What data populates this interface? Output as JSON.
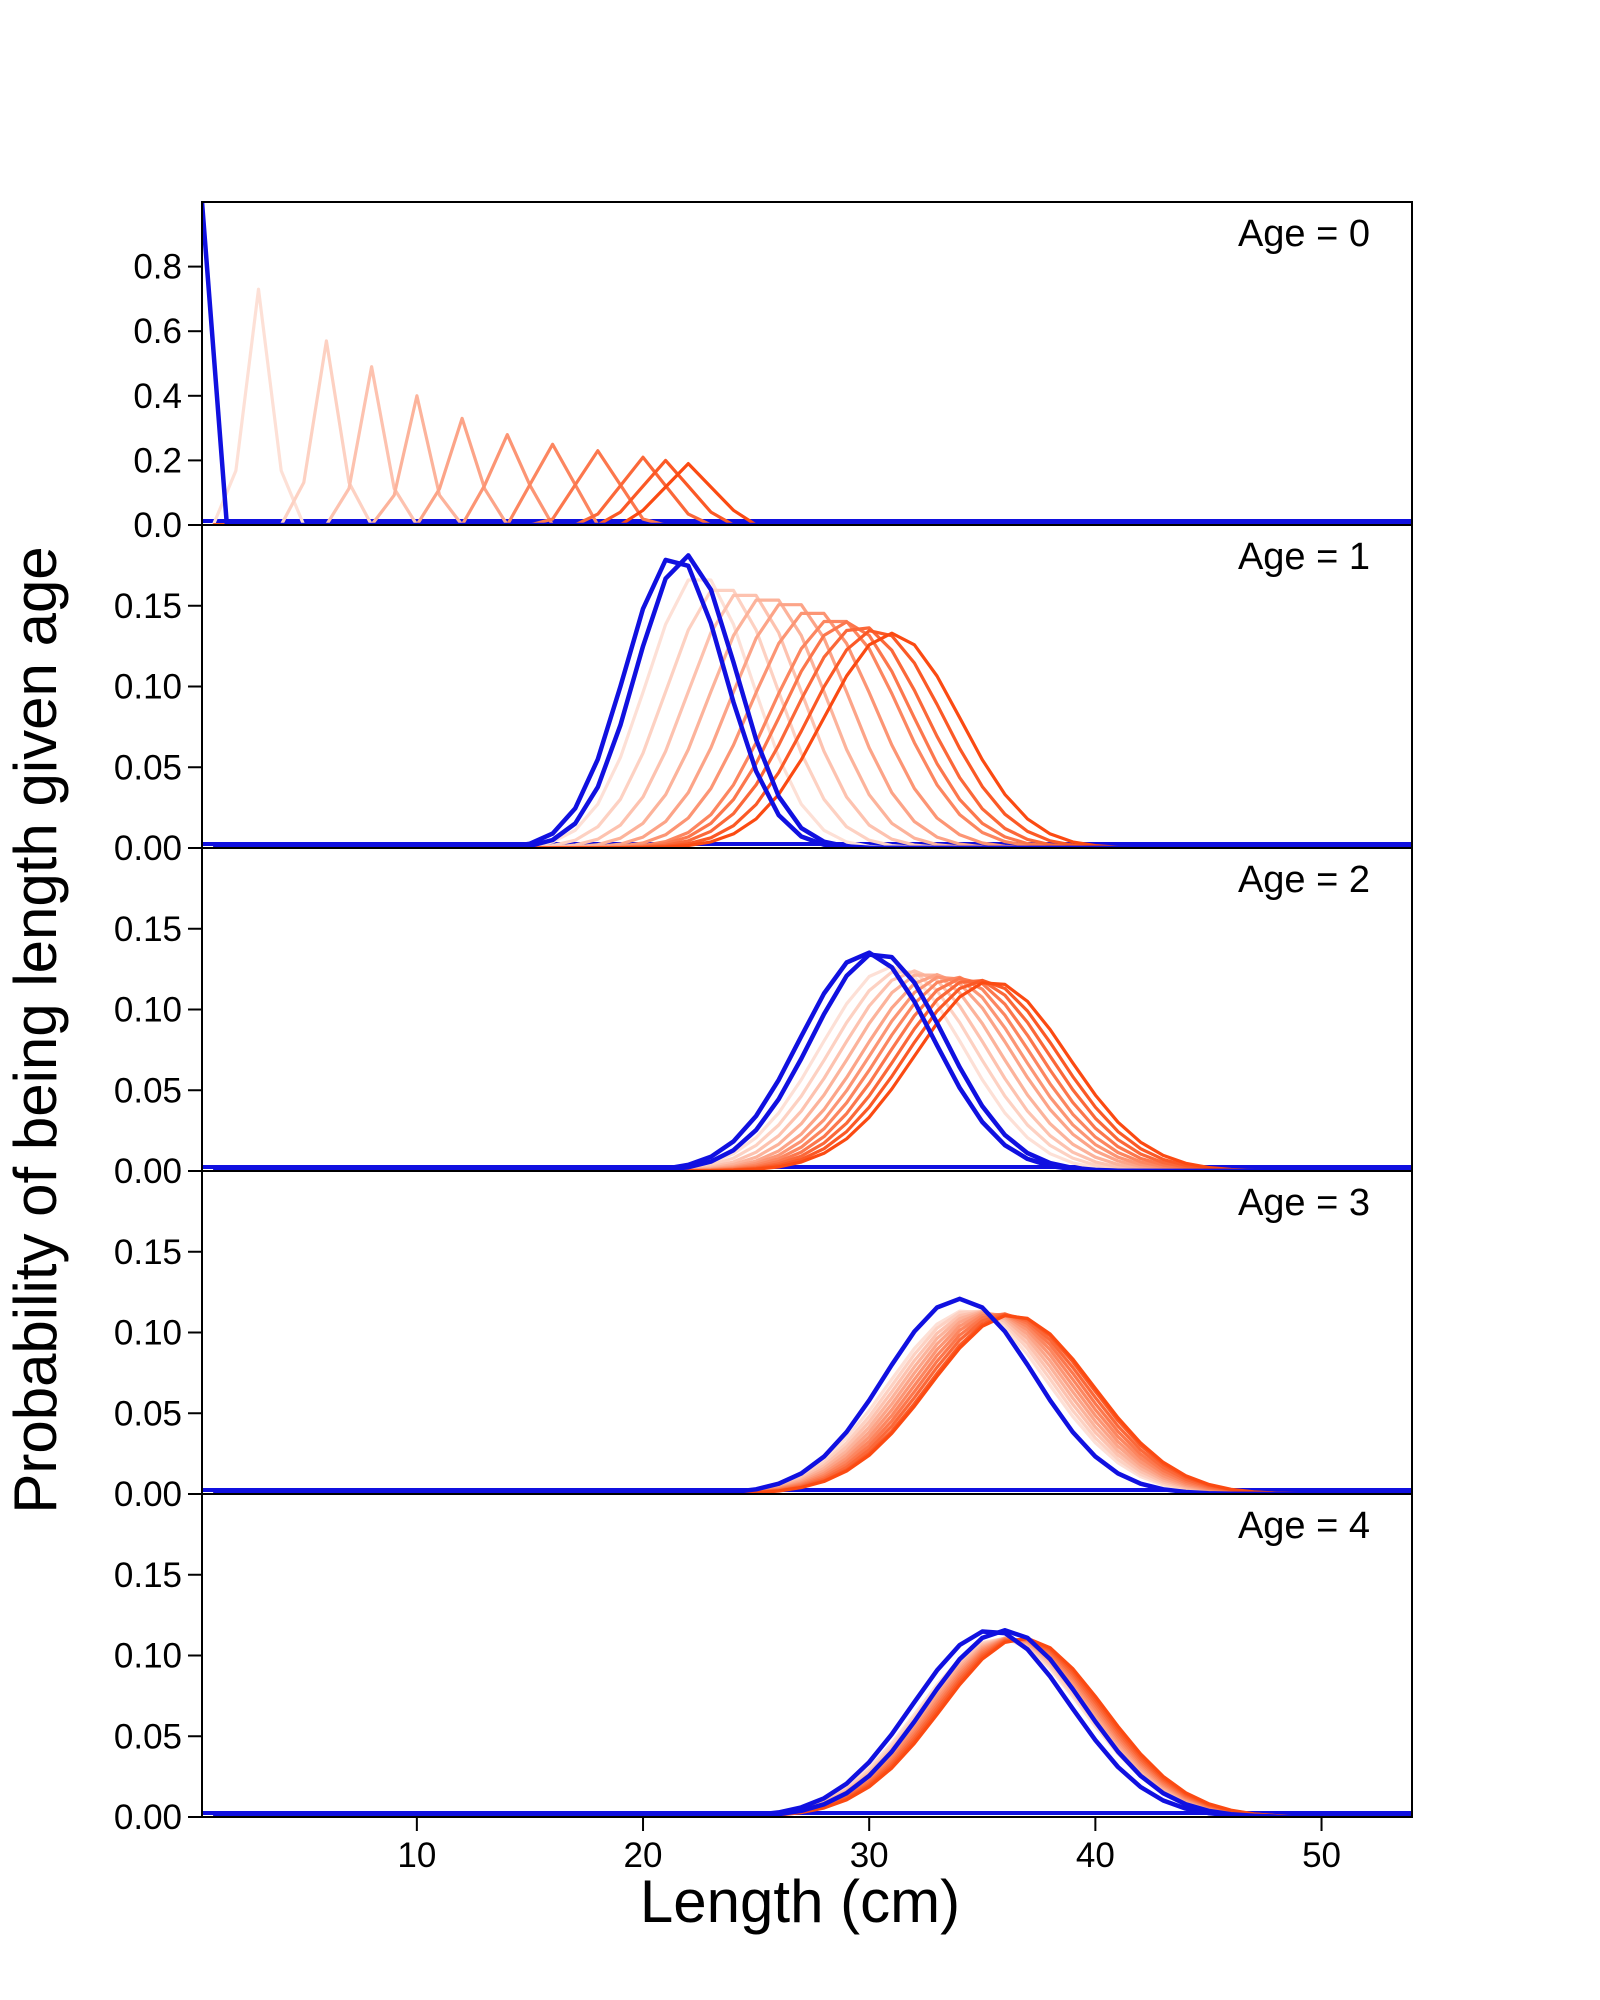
{
  "chart_data": {
    "type": "line",
    "xlabel": "Length (cm)",
    "ylabel": "Probability of being length given age",
    "xlim": [
      0.5,
      54
    ],
    "x_ticks": [
      10,
      20,
      30,
      40,
      50
    ],
    "x_tick_labels": [
      "10",
      "20",
      "30",
      "40",
      "50"
    ],
    "colors": {
      "blue": "#1010e0",
      "orange_light": "#fde0d6",
      "orange_dark": "#fb4a12"
    },
    "legend": "none",
    "grid": false,
    "panels": [
      {
        "label": "Age = 0",
        "ylim": [
          0,
          1.0
        ],
        "y_ticks": [
          0.0,
          0.2,
          0.4,
          0.6,
          0.8
        ],
        "y_tick_labels": [
          "0.0",
          "0.2",
          "0.4",
          "0.6",
          "0.8"
        ],
        "distribution": "triangular",
        "blue_means": [
          0.5
        ],
        "blue_peak_values": [
          1.0
        ],
        "orange_means": [
          3,
          6,
          8,
          10,
          12,
          14,
          16,
          18,
          20,
          21,
          22
        ],
        "orange_peak_values": [
          0.73,
          0.57,
          0.49,
          0.4,
          0.33,
          0.28,
          0.25,
          0.23,
          0.21,
          0.2,
          0.19
        ]
      },
      {
        "label": "Age = 1",
        "ylim": [
          0,
          0.2
        ],
        "y_ticks": [
          0.0,
          0.05,
          0.1,
          0.15
        ],
        "y_tick_labels": [
          "0.00",
          "0.05",
          "0.10",
          "0.15"
        ],
        "distribution": "normal",
        "blue_means": [
          21.4,
          21.9
        ],
        "blue_sd": 2.2,
        "orange_means": [
          22.5,
          23.5,
          24.5,
          25.5,
          26.5,
          27.5,
          28.5,
          29.0,
          29.6,
          30.3,
          31.0
        ],
        "orange_sd": [
          2.35,
          2.45,
          2.5,
          2.55,
          2.6,
          2.7,
          2.8,
          2.85,
          2.9,
          2.95,
          3.0
        ]
      },
      {
        "label": "Age = 2",
        "ylim": [
          0,
          0.2
        ],
        "y_ticks": [
          0.0,
          0.05,
          0.1,
          0.15
        ],
        "y_tick_labels": [
          "0.00",
          "0.05",
          "0.10",
          "0.15"
        ],
        "distribution": "normal",
        "blue_means": [
          29.9,
          30.4
        ],
        "blue_sd": 2.95,
        "orange_means": [
          31.0,
          31.5,
          32.0,
          32.5,
          33.0,
          33.4,
          33.8,
          34.2,
          34.6,
          35.0,
          35.4
        ],
        "orange_sd": [
          3.15,
          3.2,
          3.22,
          3.25,
          3.28,
          3.3,
          3.32,
          3.34,
          3.36,
          3.38,
          3.4
        ]
      },
      {
        "label": "Age = 3",
        "ylim": [
          0,
          0.2
        ],
        "y_ticks": [
          0.0,
          0.05,
          0.1,
          0.15
        ],
        "y_tick_labels": [
          "0.00",
          "0.05",
          "0.10",
          "0.15"
        ],
        "distribution": "normal",
        "blue_means": [
          34.0
        ],
        "blue_sd": 3.3,
        "orange_means": [
          34.4,
          34.6,
          34.8,
          35.0,
          35.2,
          35.4,
          35.6,
          35.8,
          36.0,
          36.2,
          36.3
        ],
        "orange_sd": [
          3.5,
          3.5,
          3.52,
          3.53,
          3.54,
          3.55,
          3.56,
          3.57,
          3.58,
          3.59,
          3.6
        ]
      },
      {
        "label": "Age = 4",
        "ylim": [
          0,
          0.2
        ],
        "y_ticks": [
          0.0,
          0.05,
          0.1,
          0.15
        ],
        "y_tick_labels": [
          "0.00",
          "0.05",
          "0.10",
          "0.15"
        ],
        "distribution": "normal",
        "blue_means": [
          35.4,
          36.0
        ],
        "blue_sd": 3.45,
        "orange_means": [
          35.8,
          35.9,
          36.0,
          36.1,
          36.2,
          36.3,
          36.4,
          36.5,
          36.6,
          36.7,
          36.8
        ],
        "orange_sd": [
          3.6,
          3.6,
          3.6,
          3.6,
          3.6,
          3.6,
          3.6,
          3.6,
          3.6,
          3.6,
          3.6
        ]
      }
    ]
  }
}
